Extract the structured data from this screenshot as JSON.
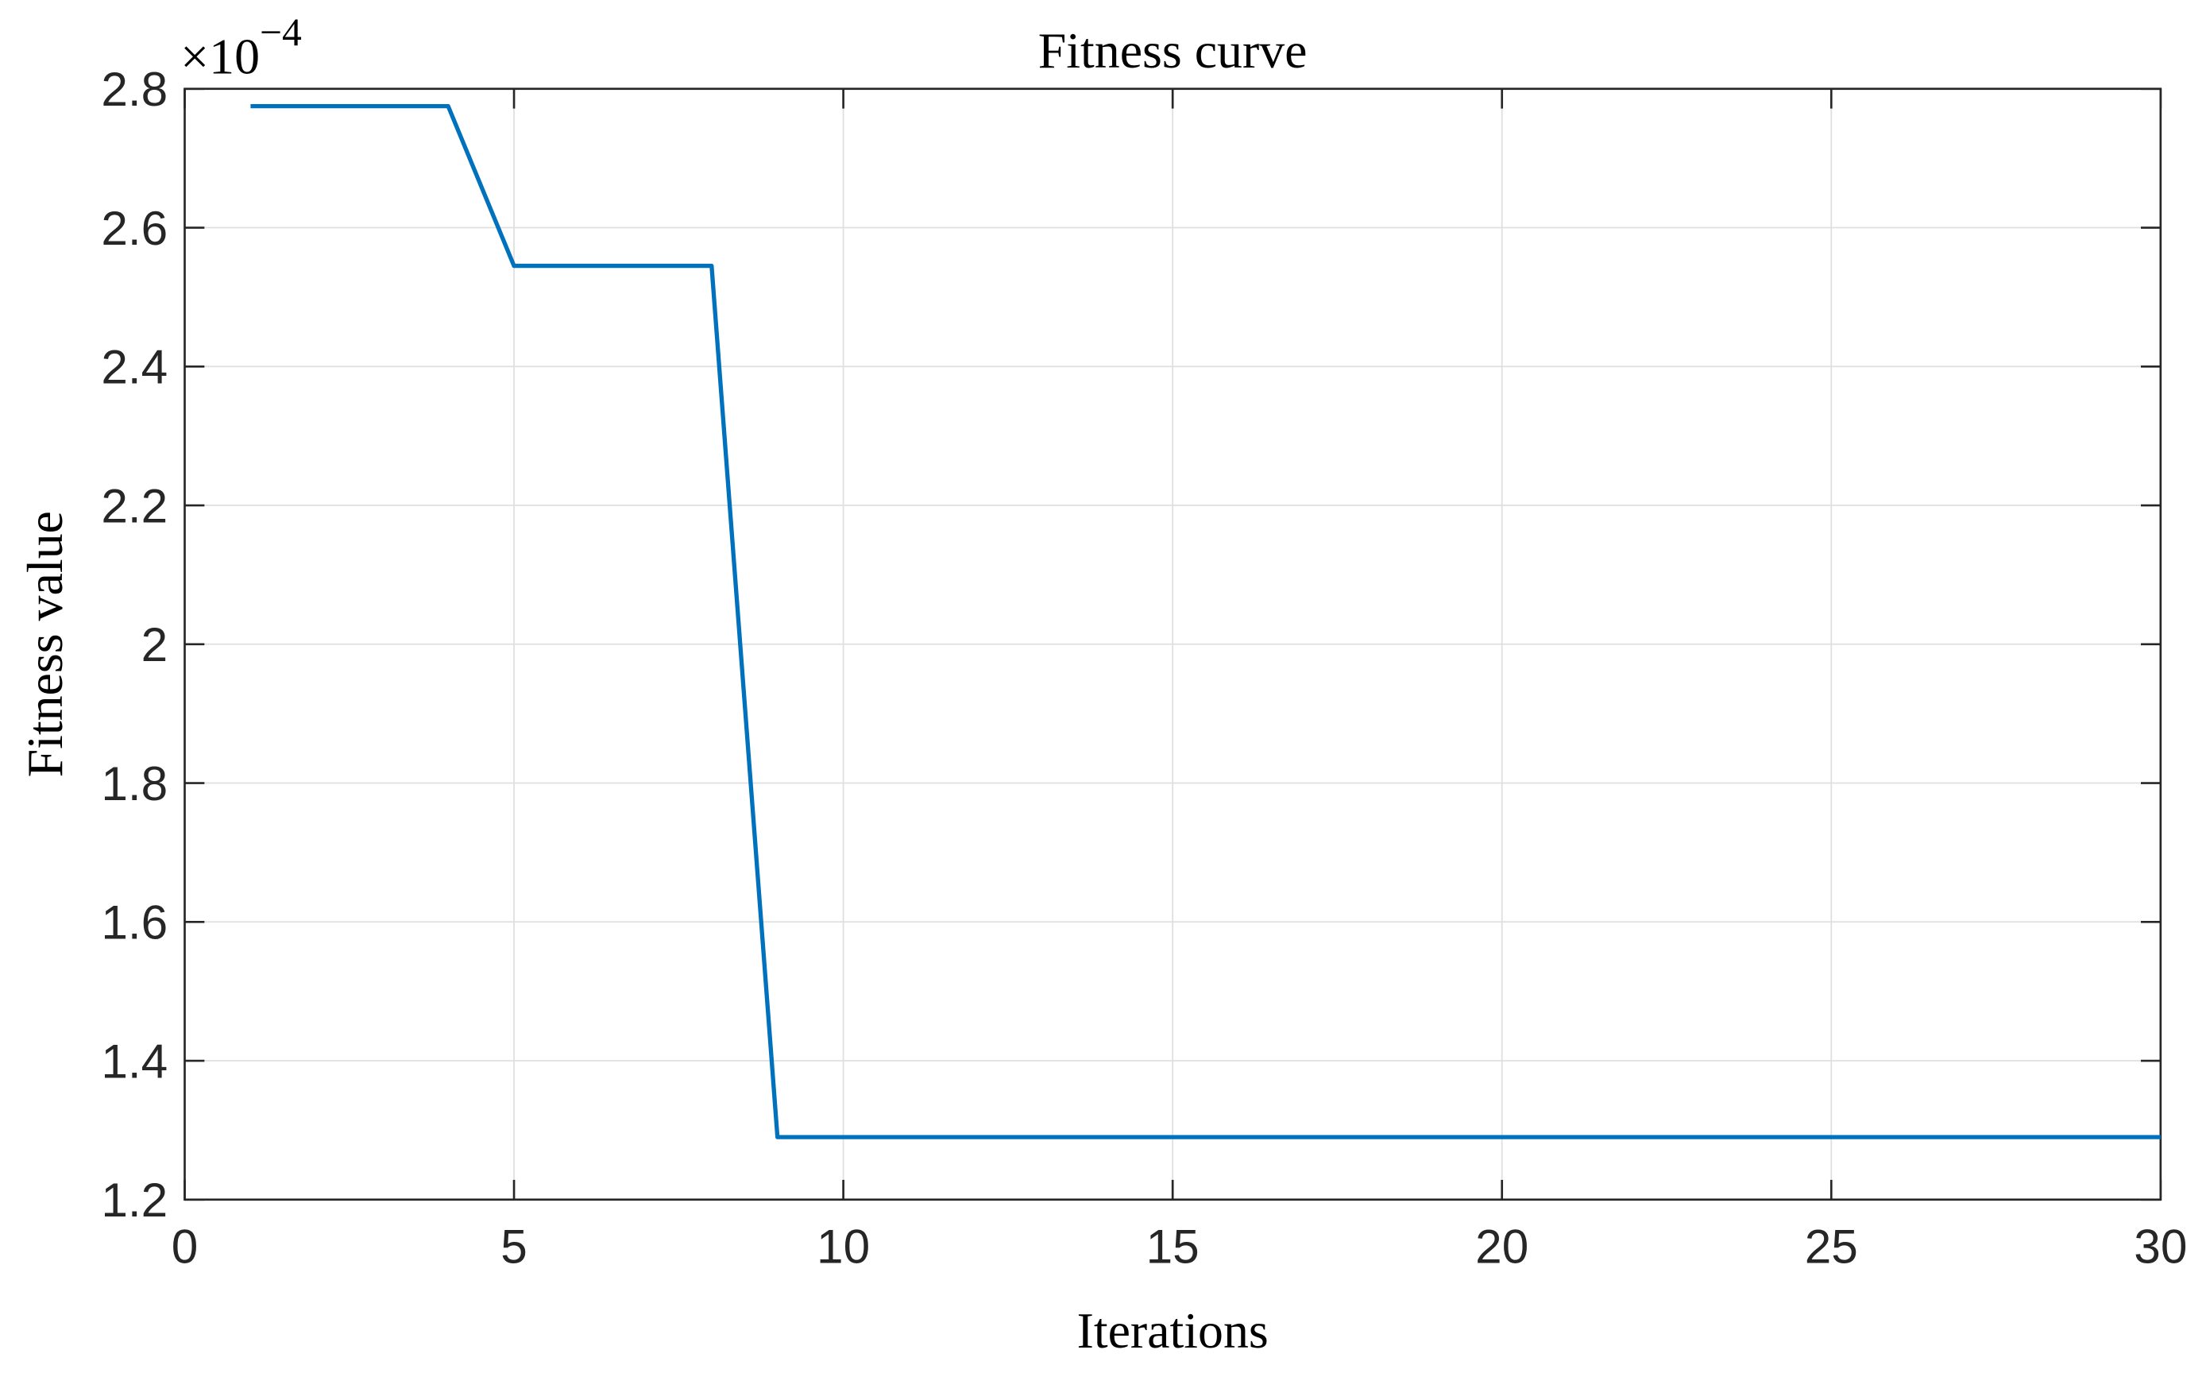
{
  "chart_data": {
    "type": "line",
    "title": "Fitness curve",
    "x_label": "Iterations",
    "y_label": "Fitness value",
    "y_multiplier": {
      "base": "×10",
      "exponent": "−4"
    },
    "x": [
      1,
      2,
      3,
      4,
      5,
      6,
      7,
      8,
      9,
      10,
      11,
      12,
      13,
      14,
      15,
      16,
      17,
      18,
      19,
      20,
      21,
      22,
      23,
      24,
      25,
      26,
      27,
      28,
      29,
      30
    ],
    "series": [
      {
        "color": "#0072bd",
        "values": [
          2.775,
          2.775,
          2.775,
          2.775,
          2.545,
          2.545,
          2.545,
          2.545,
          1.29,
          1.29,
          1.29,
          1.29,
          1.29,
          1.29,
          1.29,
          1.29,
          1.29,
          1.29,
          1.29,
          1.29,
          1.29,
          1.29,
          1.29,
          1.29,
          1.29,
          1.29,
          1.29,
          1.29,
          1.29,
          1.29
        ]
      }
    ],
    "xlim": [
      0,
      30
    ],
    "xticks": [
      0,
      5,
      10,
      15,
      20,
      25,
      30
    ],
    "ylim": [
      1.2,
      2.8
    ],
    "yticks": [
      1.2,
      1.4,
      1.6,
      1.8,
      2,
      2.2,
      2.4,
      2.6,
      2.8
    ],
    "grid": true
  }
}
